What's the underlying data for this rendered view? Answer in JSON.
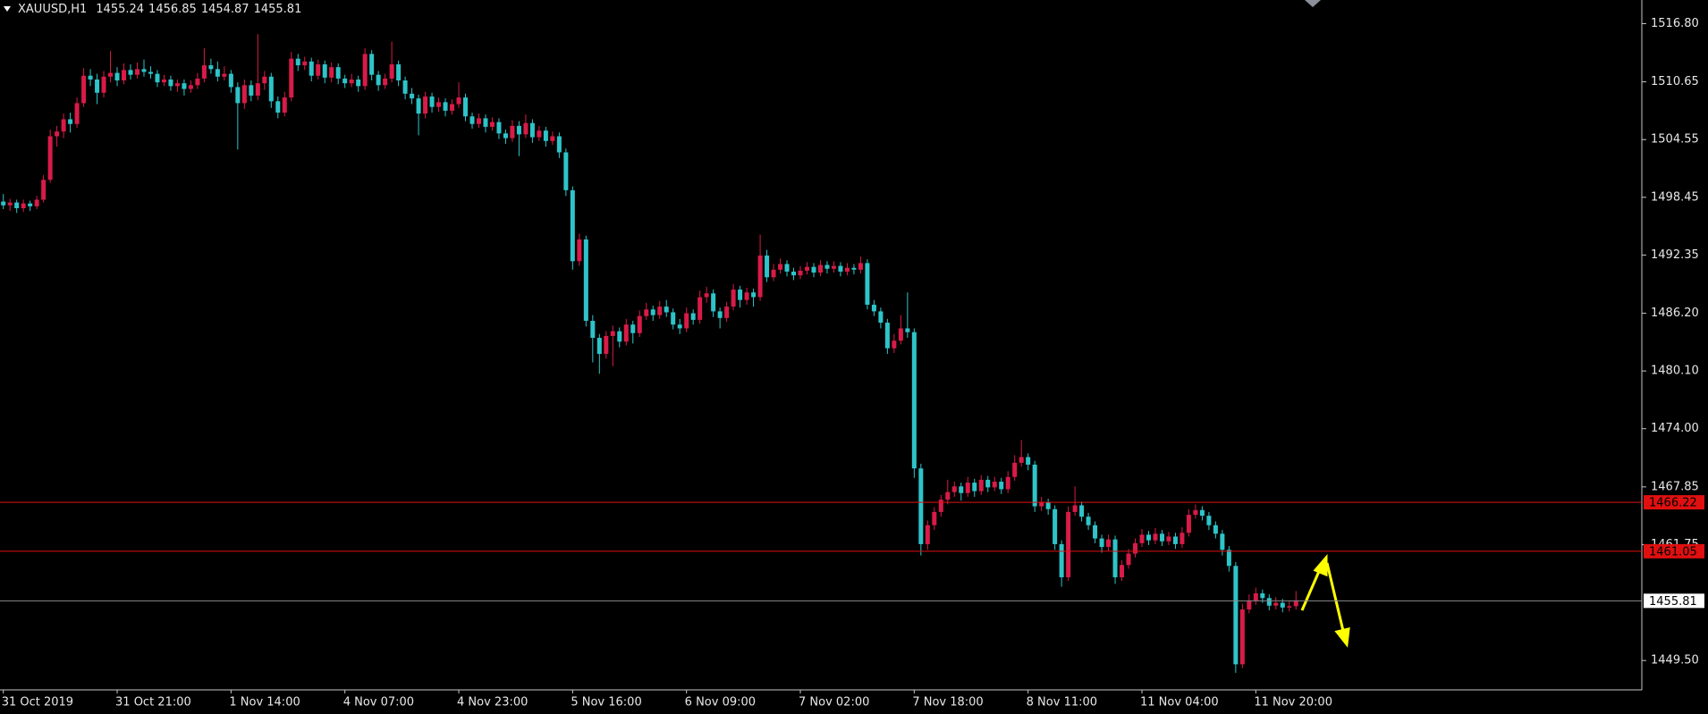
{
  "chart_data": {
    "type": "candlestick",
    "symbol": "XAUUSD,H1",
    "last_bar": [
      1455.24,
      1456.85,
      1454.87,
      1455.81
    ],
    "up_color": "#d81b48",
    "down_color": "#2ec4c9",
    "ylim": [
      1446.4,
      1519.3
    ],
    "yticks": [
      {
        "value": 1516.8,
        "label": "1516.80"
      },
      1510.65,
      1504.55,
      1498.45,
      1492.35,
      {
        "value": 1486.2,
        "label": "1486.20"
      },
      {
        "value": 1480.1,
        "label": "1480.10"
      },
      {
        "value": 1474.0,
        "label": "1474.00"
      },
      1467.85,
      1461.75,
      {
        "value": 1449.5,
        "label": "1449.50"
      }
    ],
    "levels": [
      {
        "value": 1466.22,
        "color": "#e01010"
      },
      {
        "value": 1461.05,
        "color": "#e01010"
      }
    ],
    "bid": 1455.81,
    "bid_color": "#8a8a8a",
    "categories": [
      "31 Oct 2019",
      null,
      null,
      null,
      null,
      null,
      null,
      null,
      null,
      null,
      null,
      null,
      null,
      null,
      null,
      null,
      null,
      "31 Oct 21:00",
      null,
      null,
      null,
      null,
      null,
      null,
      null,
      null,
      null,
      null,
      null,
      null,
      null,
      null,
      null,
      null,
      "1 Nov 14:00",
      null,
      null,
      null,
      null,
      null,
      null,
      null,
      null,
      null,
      null,
      null,
      null,
      null,
      null,
      null,
      null,
      "4 Nov 07:00",
      null,
      null,
      null,
      null,
      null,
      null,
      null,
      null,
      null,
      null,
      null,
      null,
      null,
      null,
      null,
      null,
      "4 Nov 23:00",
      null,
      null,
      null,
      null,
      null,
      null,
      null,
      null,
      null,
      null,
      null,
      null,
      null,
      null,
      null,
      null,
      "5 Nov 16:00",
      null,
      null,
      null,
      null,
      null,
      null,
      null,
      null,
      null,
      null,
      null,
      null,
      null,
      null,
      null,
      null,
      "6 Nov 09:00",
      null,
      null,
      null,
      null,
      null,
      null,
      null,
      null,
      null,
      null,
      null,
      null,
      null,
      null,
      null,
      null,
      "7 Nov 02:00",
      null,
      null,
      null,
      null,
      null,
      null,
      null,
      null,
      null,
      null,
      null,
      null,
      null,
      null,
      null,
      null,
      "7 Nov 18:00",
      null,
      null,
      null,
      null,
      null,
      null,
      null,
      null,
      null,
      null,
      null,
      null,
      null,
      null,
      null,
      null,
      "8 Nov 11:00",
      null,
      null,
      null,
      null,
      null,
      null,
      null,
      null,
      null,
      null,
      null,
      null,
      null,
      null,
      null,
      null,
      "11 Nov 04:00",
      null,
      null,
      null,
      null,
      null,
      null,
      null,
      null,
      null,
      null,
      null,
      null,
      null,
      null,
      null,
      null,
      "11 Nov 20:00",
      null,
      null,
      null,
      null,
      null,
      null
    ],
    "candles": [
      [
        1498.0,
        1498.8,
        1497.2,
        1497.6
      ],
      [
        1497.6,
        1498.3,
        1497.0,
        1497.9
      ],
      [
        1497.9,
        1498.2,
        1496.8,
        1497.3
      ],
      [
        1497.3,
        1498.2,
        1496.9,
        1497.8
      ],
      [
        1497.8,
        1498.1,
        1497.0,
        1497.5
      ],
      [
        1497.5,
        1498.6,
        1497.2,
        1498.2
      ],
      [
        1498.2,
        1500.8,
        1497.9,
        1500.3
      ],
      [
        1500.3,
        1505.6,
        1500.0,
        1504.9
      ],
      [
        1504.9,
        1506.0,
        1503.8,
        1505.4
      ],
      [
        1505.4,
        1507.3,
        1504.7,
        1506.7
      ],
      [
        1506.7,
        1507.4,
        1505.3,
        1506.2
      ],
      [
        1506.2,
        1509.0,
        1505.8,
        1508.4
      ],
      [
        1508.4,
        1512.1,
        1508.0,
        1511.3
      ],
      [
        1511.3,
        1512.0,
        1510.2,
        1510.9
      ],
      [
        1510.9,
        1511.5,
        1508.3,
        1509.5
      ],
      [
        1509.5,
        1511.8,
        1509.0,
        1511.2
      ],
      [
        1511.2,
        1513.9,
        1510.6,
        1511.6
      ],
      [
        1511.6,
        1512.2,
        1510.2,
        1510.8
      ],
      [
        1510.8,
        1512.6,
        1510.4,
        1511.9
      ],
      [
        1511.9,
        1512.5,
        1510.9,
        1511.4
      ],
      [
        1511.4,
        1512.7,
        1511.0,
        1512.0
      ],
      [
        1512.0,
        1513.0,
        1511.2,
        1511.7
      ],
      [
        1511.7,
        1512.3,
        1511.0,
        1511.5
      ],
      [
        1511.5,
        1511.9,
        1510.1,
        1510.6
      ],
      [
        1510.6,
        1511.4,
        1510.2,
        1510.9
      ],
      [
        1510.9,
        1511.3,
        1509.7,
        1510.2
      ],
      [
        1510.2,
        1510.9,
        1509.6,
        1510.5
      ],
      [
        1510.5,
        1510.9,
        1509.2,
        1509.9
      ],
      [
        1509.9,
        1510.8,
        1509.5,
        1510.3
      ],
      [
        1510.3,
        1511.6,
        1509.9,
        1511.0
      ],
      [
        1511.0,
        1514.2,
        1510.6,
        1512.4
      ],
      [
        1512.4,
        1513.1,
        1511.5,
        1512.0
      ],
      [
        1512.0,
        1512.8,
        1510.7,
        1511.2
      ],
      [
        1511.2,
        1512.3,
        1510.8,
        1511.5
      ],
      [
        1511.5,
        1511.9,
        1509.5,
        1510.1
      ],
      [
        1510.1,
        1510.6,
        1503.5,
        1508.4
      ],
      [
        1508.4,
        1510.9,
        1507.8,
        1510.3
      ],
      [
        1510.3,
        1510.8,
        1508.6,
        1509.2
      ],
      [
        1509.2,
        1515.7,
        1508.7,
        1510.5
      ],
      [
        1510.5,
        1511.8,
        1509.8,
        1511.2
      ],
      [
        1511.2,
        1511.6,
        1507.9,
        1508.6
      ],
      [
        1508.6,
        1509.1,
        1506.8,
        1507.4
      ],
      [
        1507.4,
        1509.6,
        1507.0,
        1509.0
      ],
      [
        1509.0,
        1513.8,
        1508.6,
        1513.1
      ],
      [
        1513.1,
        1513.6,
        1511.8,
        1512.4
      ],
      [
        1512.4,
        1513.3,
        1511.9,
        1512.8
      ],
      [
        1512.8,
        1513.2,
        1510.7,
        1511.3
      ],
      [
        1511.3,
        1513.0,
        1510.9,
        1512.5
      ],
      [
        1512.5,
        1512.9,
        1510.5,
        1511.1
      ],
      [
        1511.1,
        1512.7,
        1510.6,
        1512.2
      ],
      [
        1512.2,
        1512.6,
        1510.4,
        1511.0
      ],
      [
        1511.0,
        1511.4,
        1510.0,
        1510.5
      ],
      [
        1510.5,
        1511.5,
        1510.1,
        1510.9
      ],
      [
        1510.9,
        1511.3,
        1509.6,
        1510.2
      ],
      [
        1510.2,
        1514.2,
        1509.8,
        1513.6
      ],
      [
        1513.6,
        1514.0,
        1510.8,
        1511.4
      ],
      [
        1511.4,
        1511.8,
        1509.7,
        1510.3
      ],
      [
        1510.3,
        1511.5,
        1509.9,
        1511.0
      ],
      [
        1511.0,
        1514.9,
        1510.6,
        1512.5
      ],
      [
        1512.5,
        1512.9,
        1510.2,
        1510.8
      ],
      [
        1510.8,
        1511.2,
        1508.8,
        1509.4
      ],
      [
        1509.4,
        1510.0,
        1508.3,
        1508.9
      ],
      [
        1508.9,
        1509.3,
        1505.0,
        1507.3
      ],
      [
        1507.3,
        1509.6,
        1506.8,
        1509.1
      ],
      [
        1509.1,
        1509.5,
        1507.4,
        1508.0
      ],
      [
        1508.0,
        1509.0,
        1507.5,
        1508.5
      ],
      [
        1508.5,
        1508.9,
        1507.0,
        1507.6
      ],
      [
        1507.6,
        1508.8,
        1507.2,
        1508.3
      ],
      [
        1508.3,
        1510.6,
        1507.9,
        1509.0
      ],
      [
        1509.0,
        1509.4,
        1506.5,
        1507.0
      ],
      [
        1507.0,
        1507.4,
        1505.7,
        1506.2
      ],
      [
        1506.2,
        1507.3,
        1505.8,
        1506.8
      ],
      [
        1506.8,
        1507.2,
        1505.3,
        1505.9
      ],
      [
        1505.9,
        1506.9,
        1505.5,
        1506.4
      ],
      [
        1506.4,
        1506.8,
        1504.6,
        1505.2
      ],
      [
        1505.2,
        1505.6,
        1504.1,
        1504.7
      ],
      [
        1504.7,
        1506.6,
        1504.3,
        1506.0
      ],
      [
        1506.0,
        1506.5,
        1502.8,
        1505.1
      ],
      [
        1505.1,
        1507.2,
        1504.7,
        1506.3
      ],
      [
        1506.3,
        1506.7,
        1504.2,
        1504.8
      ],
      [
        1504.8,
        1506.0,
        1504.4,
        1505.5
      ],
      [
        1505.5,
        1505.9,
        1503.8,
        1504.4
      ],
      [
        1504.4,
        1505.4,
        1504.0,
        1504.9
      ],
      [
        1504.9,
        1505.3,
        1502.6,
        1503.2
      ],
      [
        1503.2,
        1503.6,
        1498.6,
        1499.2
      ],
      [
        1499.2,
        1499.6,
        1490.8,
        1491.7
      ],
      [
        1491.7,
        1494.6,
        1491.2,
        1494.0
      ],
      [
        1494.0,
        1494.4,
        1484.8,
        1485.4
      ],
      [
        1485.4,
        1486.0,
        1481.0,
        1483.6
      ],
      [
        1483.6,
        1484.0,
        1479.8,
        1481.9
      ],
      [
        1481.9,
        1484.3,
        1481.4,
        1483.8
      ],
      [
        1483.8,
        1484.9,
        1480.6,
        1484.3
      ],
      [
        1484.3,
        1484.7,
        1482.6,
        1483.2
      ],
      [
        1483.2,
        1485.6,
        1482.8,
        1485.0
      ],
      [
        1485.0,
        1485.4,
        1483.0,
        1484.1
      ],
      [
        1484.1,
        1486.5,
        1483.7,
        1485.9
      ],
      [
        1485.9,
        1487.3,
        1485.5,
        1486.6
      ],
      [
        1486.6,
        1487.0,
        1485.4,
        1486.0
      ],
      [
        1486.0,
        1487.5,
        1485.6,
        1486.9
      ],
      [
        1486.9,
        1487.6,
        1485.8,
        1486.3
      ],
      [
        1486.3,
        1486.7,
        1484.5,
        1485.0
      ],
      [
        1485.0,
        1485.6,
        1484.0,
        1484.6
      ],
      [
        1484.6,
        1486.8,
        1484.2,
        1486.2
      ],
      [
        1486.2,
        1486.6,
        1485.0,
        1485.5
      ],
      [
        1485.5,
        1488.6,
        1485.1,
        1487.9
      ],
      [
        1487.9,
        1489.0,
        1487.3,
        1488.3
      ],
      [
        1488.3,
        1488.7,
        1485.8,
        1486.4
      ],
      [
        1486.4,
        1486.8,
        1484.6,
        1485.7
      ],
      [
        1485.7,
        1487.4,
        1485.3,
        1486.9
      ],
      [
        1486.9,
        1489.3,
        1486.5,
        1488.7
      ],
      [
        1488.7,
        1489.1,
        1486.8,
        1487.6
      ],
      [
        1487.6,
        1488.9,
        1487.1,
        1488.4
      ],
      [
        1488.4,
        1488.8,
        1486.9,
        1487.9
      ],
      [
        1487.9,
        1494.5,
        1487.5,
        1492.3
      ],
      [
        1492.3,
        1492.9,
        1489.5,
        1490.0
      ],
      [
        1490.0,
        1491.4,
        1489.6,
        1490.8
      ],
      [
        1490.8,
        1492.0,
        1490.4,
        1491.4
      ],
      [
        1491.4,
        1491.8,
        1490.1,
        1490.6
      ],
      [
        1490.6,
        1491.0,
        1489.7,
        1490.2
      ],
      [
        1490.2,
        1491.2,
        1489.8,
        1490.7
      ],
      [
        1490.7,
        1491.6,
        1490.3,
        1491.1
      ],
      [
        1491.1,
        1491.5,
        1490.0,
        1490.5
      ],
      [
        1490.5,
        1491.8,
        1490.1,
        1491.3
      ],
      [
        1491.3,
        1491.7,
        1490.4,
        1490.9
      ],
      [
        1490.9,
        1491.7,
        1490.5,
        1491.2
      ],
      [
        1491.2,
        1491.6,
        1490.1,
        1490.6
      ],
      [
        1490.6,
        1491.5,
        1490.2,
        1491.0
      ],
      [
        1491.0,
        1491.4,
        1490.3,
        1490.8
      ],
      [
        1490.8,
        1492.2,
        1490.4,
        1491.5
      ],
      [
        1491.5,
        1491.9,
        1486.6,
        1487.1
      ],
      [
        1487.1,
        1487.6,
        1485.9,
        1486.4
      ],
      [
        1486.4,
        1486.8,
        1484.6,
        1485.2
      ],
      [
        1485.2,
        1485.6,
        1481.9,
        1482.5
      ],
      [
        1482.5,
        1484.0,
        1482.0,
        1483.3
      ],
      [
        1483.3,
        1486.0,
        1482.9,
        1484.6
      ],
      [
        1484.6,
        1488.4,
        1483.6,
        1484.2
      ],
      [
        1484.2,
        1484.6,
        1468.8,
        1469.8
      ],
      [
        1469.8,
        1470.3,
        1460.6,
        1461.8
      ],
      [
        1461.8,
        1464.3,
        1461.2,
        1463.8
      ],
      [
        1463.8,
        1465.7,
        1463.3,
        1465.2
      ],
      [
        1465.2,
        1467.0,
        1464.7,
        1466.5
      ],
      [
        1466.5,
        1468.6,
        1466.0,
        1467.3
      ],
      [
        1467.3,
        1468.4,
        1466.8,
        1467.9
      ],
      [
        1467.9,
        1468.3,
        1466.4,
        1467.2
      ],
      [
        1467.2,
        1468.9,
        1466.8,
        1468.3
      ],
      [
        1468.3,
        1468.7,
        1466.8,
        1467.4
      ],
      [
        1467.4,
        1469.1,
        1467.0,
        1468.6
      ],
      [
        1468.6,
        1469.0,
        1467.3,
        1467.8
      ],
      [
        1467.8,
        1468.9,
        1467.4,
        1468.4
      ],
      [
        1468.4,
        1468.8,
        1467.1,
        1467.6
      ],
      [
        1467.6,
        1469.5,
        1467.2,
        1468.9
      ],
      [
        1468.9,
        1471.2,
        1468.5,
        1470.4
      ],
      [
        1470.4,
        1472.8,
        1470.0,
        1471.0
      ],
      [
        1471.0,
        1471.4,
        1469.6,
        1470.2
      ],
      [
        1470.2,
        1470.6,
        1465.2,
        1465.8
      ],
      [
        1465.8,
        1466.8,
        1465.3,
        1466.2
      ],
      [
        1466.2,
        1466.6,
        1464.9,
        1465.5
      ],
      [
        1465.5,
        1465.9,
        1461.2,
        1461.8
      ],
      [
        1461.8,
        1462.2,
        1457.3,
        1458.3
      ],
      [
        1458.3,
        1465.8,
        1457.9,
        1465.2
      ],
      [
        1465.2,
        1467.9,
        1464.8,
        1465.9
      ],
      [
        1465.9,
        1466.3,
        1464.2,
        1464.7
      ],
      [
        1464.7,
        1465.1,
        1463.3,
        1463.8
      ],
      [
        1463.8,
        1464.2,
        1461.9,
        1462.4
      ],
      [
        1462.4,
        1462.8,
        1460.9,
        1461.5
      ],
      [
        1461.5,
        1462.8,
        1461.1,
        1462.3
      ],
      [
        1462.3,
        1462.7,
        1457.6,
        1458.3
      ],
      [
        1458.3,
        1460.1,
        1457.9,
        1459.6
      ],
      [
        1459.6,
        1461.3,
        1459.2,
        1460.8
      ],
      [
        1460.8,
        1462.4,
        1460.4,
        1461.9
      ],
      [
        1461.9,
        1463.4,
        1461.5,
        1462.8
      ],
      [
        1462.8,
        1463.2,
        1461.7,
        1462.2
      ],
      [
        1462.2,
        1463.5,
        1461.8,
        1462.9
      ],
      [
        1462.9,
        1463.3,
        1461.6,
        1462.1
      ],
      [
        1462.1,
        1463.1,
        1461.7,
        1462.6
      ],
      [
        1462.6,
        1463.0,
        1461.3,
        1461.8
      ],
      [
        1461.8,
        1463.6,
        1461.4,
        1463.0
      ],
      [
        1463.0,
        1465.5,
        1462.6,
        1464.9
      ],
      [
        1464.9,
        1466.0,
        1464.5,
        1465.4
      ],
      [
        1465.4,
        1465.8,
        1464.3,
        1464.8
      ],
      [
        1464.8,
        1465.2,
        1463.3,
        1463.8
      ],
      [
        1463.8,
        1464.2,
        1462.4,
        1462.9
      ],
      [
        1462.9,
        1463.3,
        1460.6,
        1461.2
      ],
      [
        1461.2,
        1461.6,
        1458.9,
        1459.5
      ],
      [
        1459.5,
        1459.9,
        1448.2,
        1449.1
      ],
      [
        1449.1,
        1455.5,
        1448.7,
        1454.9
      ],
      [
        1454.9,
        1456.5,
        1454.5,
        1455.8
      ],
      [
        1455.8,
        1457.2,
        1455.4,
        1456.6
      ],
      [
        1456.6,
        1457.0,
        1455.6,
        1456.1
      ],
      [
        1456.1,
        1456.5,
        1454.8,
        1455.3
      ],
      [
        1455.3,
        1456.2,
        1454.9,
        1455.6
      ],
      [
        1455.6,
        1456.0,
        1454.6,
        1455.1
      ],
      [
        1455.1,
        1455.8,
        1454.7,
        1455.24
      ],
      [
        1455.24,
        1456.85,
        1454.87,
        1455.81
      ]
    ]
  }
}
